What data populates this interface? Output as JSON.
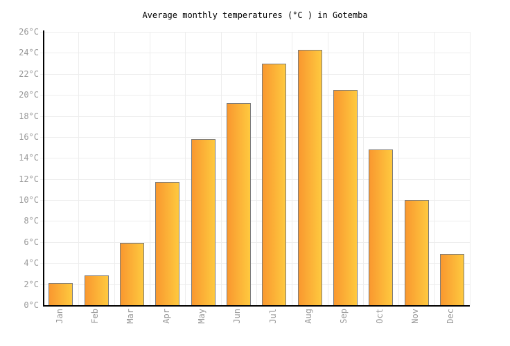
{
  "chart_data": {
    "type": "bar",
    "title": "Average monthly temperatures (°C ) in Gotemba",
    "categories": [
      "Jan",
      "Feb",
      "Mar",
      "Apr",
      "May",
      "Jun",
      "Jul",
      "Aug",
      "Sep",
      "Oct",
      "Nov",
      "Dec"
    ],
    "values": [
      2.1,
      2.8,
      5.9,
      11.7,
      15.8,
      19.2,
      23.0,
      24.3,
      20.5,
      14.8,
      10.0,
      4.9
    ],
    "unit": "°C",
    "xlabel": "",
    "ylabel": "",
    "ylim": [
      0,
      26
    ],
    "ytick_step": 2,
    "ytick_labels": [
      "0°C",
      "2°C",
      "4°C",
      "6°C",
      "8°C",
      "10°C",
      "12°C",
      "14°C",
      "16°C",
      "18°C",
      "20°C",
      "22°C",
      "24°C",
      "26°C"
    ],
    "grid": true,
    "legend": null,
    "colors": {
      "bar_gradient_left": "#F9982F",
      "bar_gradient_right": "#FEC93F",
      "bar_border": "#7B7B7B",
      "gridline": "#EDEDED",
      "axis": "#000000",
      "tick_label": "#999999",
      "title": "#000000",
      "background": "#FFFFFF"
    }
  }
}
